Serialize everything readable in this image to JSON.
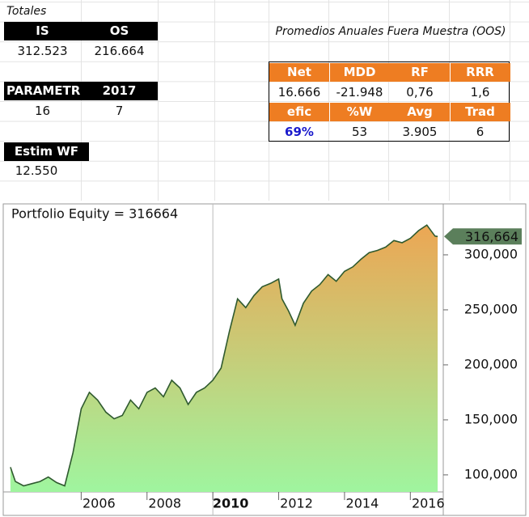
{
  "sheet": {
    "totales": "Totales",
    "totals_header": [
      "IS",
      "OS"
    ],
    "totals_values": [
      "312.523",
      "216.664"
    ],
    "param_header": [
      "PARAMETRO",
      "2017"
    ],
    "param_values": [
      "16",
      "7"
    ],
    "estim_header": "Estim WF",
    "estim_value": "12.550"
  },
  "oos": {
    "title": "Promedios Anuales Fuera Muestra (OOS)",
    "header1": [
      "Net",
      "MDD",
      "RF",
      "RRR"
    ],
    "row1": [
      "16.666",
      "-21.948",
      "0,76",
      "1,6"
    ],
    "header2": [
      "efic",
      "%W",
      "Avg",
      "Trad"
    ],
    "row2": [
      "69%",
      "53",
      "3.905",
      "6"
    ]
  },
  "chart_data": {
    "type": "area",
    "title": "Portfolio Equity = 316664",
    "x": [
      2003.85,
      2004.0,
      2004.25,
      2004.5,
      2004.75,
      2005.0,
      2005.25,
      2005.5,
      2005.75,
      2006.0,
      2006.25,
      2006.5,
      2006.75,
      2007.0,
      2007.25,
      2007.5,
      2007.75,
      2008.0,
      2008.25,
      2008.5,
      2008.75,
      2009.0,
      2009.25,
      2009.5,
      2009.75,
      2010.0,
      2010.25,
      2010.5,
      2010.75,
      2011.0,
      2011.25,
      2011.5,
      2011.75,
      2012.0,
      2012.1,
      2012.3,
      2012.5,
      2012.75,
      2013.0,
      2013.25,
      2013.5,
      2013.75,
      2014.0,
      2014.25,
      2014.5,
      2014.75,
      2015.0,
      2015.25,
      2015.5,
      2015.75,
      2016.0,
      2016.25,
      2016.5,
      2016.75,
      2016.83
    ],
    "series": [
      {
        "color": "#2f5a2f",
        "values": [
          107000,
          94000,
          90000,
          92000,
          94000,
          98000,
          93000,
          90000,
          120000,
          160000,
          175000,
          168000,
          157000,
          151000,
          154000,
          168000,
          160000,
          175000,
          179000,
          171000,
          186000,
          179000,
          164000,
          175000,
          179000,
          186000,
          197000,
          230000,
          260000,
          252000,
          263000,
          271000,
          274000,
          278000,
          260000,
          249000,
          236000,
          256000,
          267000,
          273000,
          282000,
          276000,
          285000,
          289000,
          296000,
          302000,
          304000,
          307000,
          313000,
          311000,
          315000,
          322000,
          327000,
          317000,
          316664
        ]
      }
    ],
    "end_label": "316,664",
    "xlim": [
      2003.73,
      2017.0
    ],
    "xticks": [
      2006,
      2008,
      2010,
      2012,
      2014,
      2016
    ],
    "cursor_x": 2010,
    "ylim": [
      84500,
      346300
    ],
    "yticks": [
      {
        "value": 100000,
        "label": "100,000"
      },
      {
        "value": 150000,
        "label": "150,000"
      },
      {
        "value": 200000,
        "label": "200,000"
      },
      {
        "value": 250000,
        "label": "250,000"
      },
      {
        "value": 300000,
        "label": "300,000"
      }
    ],
    "gradient": [
      "#f2a04e",
      "#9ff59f"
    ]
  }
}
